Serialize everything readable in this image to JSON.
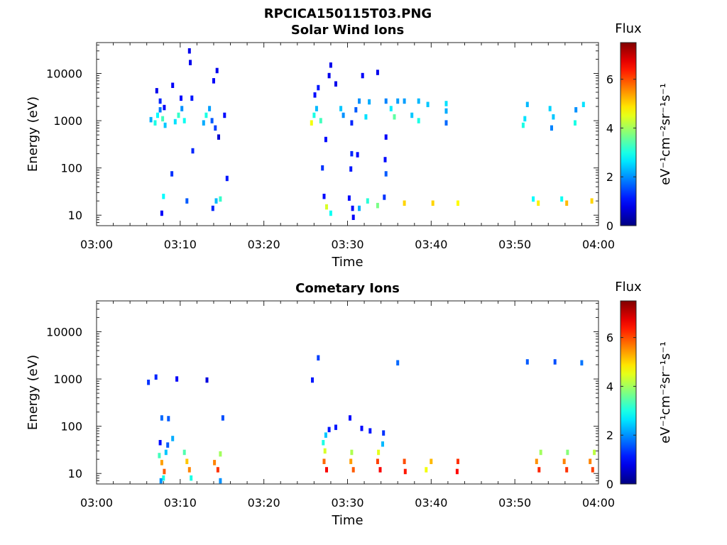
{
  "figure_title": "RPCICA150115T03.PNG",
  "chart_data": [
    {
      "type": "heatmap",
      "title": "Solar Wind Ions",
      "xlabel": "Time",
      "ylabel": "Energy (eV)",
      "xlim": [
        "03:00",
        "04:00"
      ],
      "ylim": [
        6,
        45000
      ],
      "yscale": "log",
      "x_ticks": [
        "03:00",
        "03:10",
        "03:20",
        "03:30",
        "03:40",
        "03:50",
        "04:00"
      ],
      "y_ticks": [
        "10",
        "100",
        "1000",
        "10000"
      ],
      "colorbar": {
        "title": "Flux",
        "label": "eV⁻¹cm⁻²sr⁻¹s⁻¹",
        "min": 0,
        "max": 7.5,
        "ticks": [
          "0",
          "2",
          "4",
          "6"
        ]
      },
      "cells": [
        {
          "t": 6.5,
          "e": 1050,
          "v": 2.2
        },
        {
          "t": 7.0,
          "e": 900,
          "v": 3.0
        },
        {
          "t": 7.3,
          "e": 1300,
          "v": 2.8
        },
        {
          "t": 7.6,
          "e": 1700,
          "v": 1.8
        },
        {
          "t": 7.9,
          "e": 1100,
          "v": 3.3
        },
        {
          "t": 8.2,
          "e": 800,
          "v": 2.4
        },
        {
          "t": 7.2,
          "e": 4300,
          "v": 0.8
        },
        {
          "t": 7.6,
          "e": 2600,
          "v": 1.2
        },
        {
          "t": 8.1,
          "e": 1900,
          "v": 0.9
        },
        {
          "t": 9.4,
          "e": 950,
          "v": 2.6
        },
        {
          "t": 9.8,
          "e": 1300,
          "v": 3.2
        },
        {
          "t": 10.2,
          "e": 1800,
          "v": 2.0
        },
        {
          "t": 10.5,
          "e": 1000,
          "v": 2.9
        },
        {
          "t": 10.1,
          "e": 3000,
          "v": 1.0
        },
        {
          "t": 9.1,
          "e": 5600,
          "v": 0.9
        },
        {
          "t": 11.1,
          "e": 30000,
          "v": 0.8
        },
        {
          "t": 11.2,
          "e": 17000,
          "v": 0.8
        },
        {
          "t": 11.4,
          "e": 3000,
          "v": 1.1
        },
        {
          "t": 12.8,
          "e": 900,
          "v": 2.2
        },
        {
          "t": 13.1,
          "e": 1300,
          "v": 3.0
        },
        {
          "t": 13.5,
          "e": 1800,
          "v": 2.1
        },
        {
          "t": 13.8,
          "e": 1000,
          "v": 1.6
        },
        {
          "t": 14.2,
          "e": 700,
          "v": 1.4
        },
        {
          "t": 14.6,
          "e": 450,
          "v": 0.6
        },
        {
          "t": 14.4,
          "e": 11500,
          "v": 0.8
        },
        {
          "t": 14.0,
          "e": 7000,
          "v": 0.9
        },
        {
          "t": 15.3,
          "e": 1300,
          "v": 1.0
        },
        {
          "t": 11.5,
          "e": 230,
          "v": 1.2
        },
        {
          "t": 9.0,
          "e": 75,
          "v": 1.3
        },
        {
          "t": 15.6,
          "e": 60,
          "v": 1.1
        },
        {
          "t": 8.0,
          "e": 25,
          "v": 2.8
        },
        {
          "t": 7.8,
          "e": 11,
          "v": 0.9
        },
        {
          "t": 10.8,
          "e": 20,
          "v": 1.6
        },
        {
          "t": 13.9,
          "e": 14,
          "v": 1.2
        },
        {
          "t": 14.3,
          "e": 20,
          "v": 2.3
        },
        {
          "t": 14.8,
          "e": 22,
          "v": 3.2
        },
        {
          "t": 25.7,
          "e": 900,
          "v": 4.6
        },
        {
          "t": 26.0,
          "e": 1300,
          "v": 3.0
        },
        {
          "t": 26.3,
          "e": 1800,
          "v": 2.3
        },
        {
          "t": 26.8,
          "e": 1000,
          "v": 3.3
        },
        {
          "t": 26.1,
          "e": 3500,
          "v": 1.0
        },
        {
          "t": 26.5,
          "e": 5000,
          "v": 1.1
        },
        {
          "t": 28.0,
          "e": 15000,
          "v": 0.8
        },
        {
          "t": 27.8,
          "e": 9000,
          "v": 0.8
        },
        {
          "t": 28.6,
          "e": 6000,
          "v": 0.8
        },
        {
          "t": 29.2,
          "e": 1800,
          "v": 2.4
        },
        {
          "t": 29.5,
          "e": 1300,
          "v": 2.0
        },
        {
          "t": 30.5,
          "e": 900,
          "v": 1.2
        },
        {
          "t": 31.0,
          "e": 1700,
          "v": 1.6
        },
        {
          "t": 31.4,
          "e": 2600,
          "v": 2.0
        },
        {
          "t": 32.2,
          "e": 1200,
          "v": 2.6
        },
        {
          "t": 32.6,
          "e": 2500,
          "v": 2.2
        },
        {
          "t": 31.8,
          "e": 9000,
          "v": 0.9
        },
        {
          "t": 33.6,
          "e": 10500,
          "v": 0.8
        },
        {
          "t": 34.6,
          "e": 2600,
          "v": 1.9
        },
        {
          "t": 35.2,
          "e": 1800,
          "v": 2.7
        },
        {
          "t": 35.6,
          "e": 1200,
          "v": 3.5
        },
        {
          "t": 36.0,
          "e": 2600,
          "v": 2.1
        },
        {
          "t": 36.8,
          "e": 2600,
          "v": 2.1
        },
        {
          "t": 37.7,
          "e": 1300,
          "v": 2.4
        },
        {
          "t": 38.5,
          "e": 2600,
          "v": 2.3
        },
        {
          "t": 38.5,
          "e": 1000,
          "v": 3.0
        },
        {
          "t": 39.6,
          "e": 2200,
          "v": 2.4
        },
        {
          "t": 41.8,
          "e": 2300,
          "v": 2.6
        },
        {
          "t": 41.8,
          "e": 1600,
          "v": 2.2
        },
        {
          "t": 41.8,
          "e": 900,
          "v": 1.7
        },
        {
          "t": 34.6,
          "e": 450,
          "v": 0.9
        },
        {
          "t": 27.4,
          "e": 400,
          "v": 1.0
        },
        {
          "t": 30.5,
          "e": 200,
          "v": 1.2
        },
        {
          "t": 31.2,
          "e": 190,
          "v": 1.0
        },
        {
          "t": 34.5,
          "e": 150,
          "v": 1.0
        },
        {
          "t": 27.0,
          "e": 100,
          "v": 1.3
        },
        {
          "t": 30.4,
          "e": 95,
          "v": 1.1
        },
        {
          "t": 34.6,
          "e": 75,
          "v": 1.6
        },
        {
          "t": 51.5,
          "e": 2200,
          "v": 2.3
        },
        {
          "t": 51.2,
          "e": 1100,
          "v": 2.6
        },
        {
          "t": 51.0,
          "e": 800,
          "v": 3.0
        },
        {
          "t": 54.2,
          "e": 1800,
          "v": 2.5
        },
        {
          "t": 54.6,
          "e": 1200,
          "v": 2.4
        },
        {
          "t": 54.4,
          "e": 700,
          "v": 1.9
        },
        {
          "t": 57.3,
          "e": 1700,
          "v": 2.0
        },
        {
          "t": 58.2,
          "e": 2200,
          "v": 2.6
        },
        {
          "t": 57.2,
          "e": 900,
          "v": 3.0
        },
        {
          "t": 27.2,
          "e": 25,
          "v": 1.0
        },
        {
          "t": 27.5,
          "e": 15,
          "v": 4.4
        },
        {
          "t": 28.0,
          "e": 11,
          "v": 2.9
        },
        {
          "t": 30.2,
          "e": 23,
          "v": 1.0
        },
        {
          "t": 30.6,
          "e": 14,
          "v": 1.0
        },
        {
          "t": 30.7,
          "e": 9,
          "v": 0.9
        },
        {
          "t": 31.4,
          "e": 14,
          "v": 2.2
        },
        {
          "t": 32.4,
          "e": 20,
          "v": 3.1
        },
        {
          "t": 33.6,
          "e": 16,
          "v": 3.7
        },
        {
          "t": 34.4,
          "e": 24,
          "v": 1.3
        },
        {
          "t": 36.8,
          "e": 18,
          "v": 5.0
        },
        {
          "t": 40.2,
          "e": 18,
          "v": 5.0
        },
        {
          "t": 43.2,
          "e": 18,
          "v": 4.7
        },
        {
          "t": 52.8,
          "e": 18,
          "v": 4.8
        },
        {
          "t": 56.2,
          "e": 18,
          "v": 5.2
        },
        {
          "t": 59.2,
          "e": 20,
          "v": 5.0
        },
        {
          "t": 52.2,
          "e": 22,
          "v": 2.8
        },
        {
          "t": 55.6,
          "e": 22,
          "v": 2.9
        }
      ]
    },
    {
      "type": "heatmap",
      "title": "Cometary Ions",
      "xlabel": "Time",
      "ylabel": "Energy (eV)",
      "xlim": [
        "03:00",
        "04:00"
      ],
      "ylim": [
        6,
        45000
      ],
      "yscale": "log",
      "x_ticks": [
        "03:00",
        "03:10",
        "03:20",
        "03:30",
        "03:40",
        "03:50",
        "04:00"
      ],
      "y_ticks": [
        "10",
        "100",
        "1000",
        "10000"
      ],
      "colorbar": {
        "title": "Flux",
        "label": "eV⁻¹cm⁻²sr⁻¹s⁻¹",
        "min": 0,
        "max": 7.5,
        "ticks": [
          "0",
          "2",
          "4",
          "6"
        ]
      },
      "cells": [
        {
          "t": 7.8,
          "e": 17,
          "v": 5.4
        },
        {
          "t": 8.1,
          "e": 11,
          "v": 5.9
        },
        {
          "t": 7.5,
          "e": 24,
          "v": 3.3
        },
        {
          "t": 8.0,
          "e": 8,
          "v": 3.0
        },
        {
          "t": 8.3,
          "e": 28,
          "v": 2.4
        },
        {
          "t": 7.7,
          "e": 7,
          "v": 2.0
        },
        {
          "t": 10.8,
          "e": 18,
          "v": 5.1
        },
        {
          "t": 11.1,
          "e": 12,
          "v": 5.6
        },
        {
          "t": 10.5,
          "e": 28,
          "v": 3.4
        },
        {
          "t": 11.3,
          "e": 8,
          "v": 3.0
        },
        {
          "t": 14.1,
          "e": 17,
          "v": 5.6
        },
        {
          "t": 14.5,
          "e": 12,
          "v": 6.2
        },
        {
          "t": 14.8,
          "e": 26,
          "v": 4.0
        },
        {
          "t": 14.8,
          "e": 7,
          "v": 2.0
        },
        {
          "t": 27.2,
          "e": 18,
          "v": 5.8
        },
        {
          "t": 27.5,
          "e": 12,
          "v": 6.6
        },
        {
          "t": 27.3,
          "e": 30,
          "v": 4.4
        },
        {
          "t": 27.1,
          "e": 45,
          "v": 3.0
        },
        {
          "t": 27.4,
          "e": 65,
          "v": 2.4
        },
        {
          "t": 30.4,
          "e": 18,
          "v": 5.4
        },
        {
          "t": 30.7,
          "e": 12,
          "v": 5.9
        },
        {
          "t": 30.5,
          "e": 28,
          "v": 4.1
        },
        {
          "t": 33.6,
          "e": 18,
          "v": 6.1
        },
        {
          "t": 33.9,
          "e": 12,
          "v": 6.6
        },
        {
          "t": 33.7,
          "e": 28,
          "v": 4.5
        },
        {
          "t": 34.2,
          "e": 42,
          "v": 2.3
        },
        {
          "t": 36.8,
          "e": 18,
          "v": 6.0
        },
        {
          "t": 36.9,
          "e": 11,
          "v": 6.4
        },
        {
          "t": 40.0,
          "e": 18,
          "v": 5.2
        },
        {
          "t": 39.4,
          "e": 12,
          "v": 4.6
        },
        {
          "t": 43.2,
          "e": 18,
          "v": 6.2
        },
        {
          "t": 43.1,
          "e": 11,
          "v": 6.5
        },
        {
          "t": 52.6,
          "e": 18,
          "v": 5.5
        },
        {
          "t": 52.9,
          "e": 12,
          "v": 6.3
        },
        {
          "t": 53.1,
          "e": 28,
          "v": 4.0
        },
        {
          "t": 55.9,
          "e": 18,
          "v": 5.6
        },
        {
          "t": 56.2,
          "e": 12,
          "v": 6.2
        },
        {
          "t": 56.3,
          "e": 28,
          "v": 3.8
        },
        {
          "t": 59.0,
          "e": 18,
          "v": 5.6
        },
        {
          "t": 59.3,
          "e": 12,
          "v": 6.1
        },
        {
          "t": 59.5,
          "e": 28,
          "v": 4.2
        },
        {
          "t": 6.2,
          "e": 850,
          "v": 1.3
        },
        {
          "t": 7.1,
          "e": 1100,
          "v": 1.2
        },
        {
          "t": 9.6,
          "e": 1000,
          "v": 0.9
        },
        {
          "t": 13.2,
          "e": 950,
          "v": 0.7
        },
        {
          "t": 25.8,
          "e": 950,
          "v": 1.1
        },
        {
          "t": 26.5,
          "e": 2800,
          "v": 1.4
        },
        {
          "t": 36.0,
          "e": 2200,
          "v": 1.7
        },
        {
          "t": 51.5,
          "e": 2300,
          "v": 1.6
        },
        {
          "t": 54.8,
          "e": 2300,
          "v": 1.5
        },
        {
          "t": 58.0,
          "e": 2200,
          "v": 1.8
        },
        {
          "t": 7.8,
          "e": 150,
          "v": 1.7
        },
        {
          "t": 8.6,
          "e": 145,
          "v": 1.6
        },
        {
          "t": 15.1,
          "e": 150,
          "v": 1.5
        },
        {
          "t": 7.6,
          "e": 45,
          "v": 1.0
        },
        {
          "t": 8.5,
          "e": 40,
          "v": 1.6
        },
        {
          "t": 9.1,
          "e": 55,
          "v": 2.2
        },
        {
          "t": 27.8,
          "e": 85,
          "v": 1.1
        },
        {
          "t": 28.6,
          "e": 95,
          "v": 1.1
        },
        {
          "t": 30.3,
          "e": 150,
          "v": 1.0
        },
        {
          "t": 31.7,
          "e": 90,
          "v": 1.0
        },
        {
          "t": 32.7,
          "e": 80,
          "v": 1.1
        },
        {
          "t": 34.3,
          "e": 72,
          "v": 1.3
        }
      ]
    }
  ]
}
